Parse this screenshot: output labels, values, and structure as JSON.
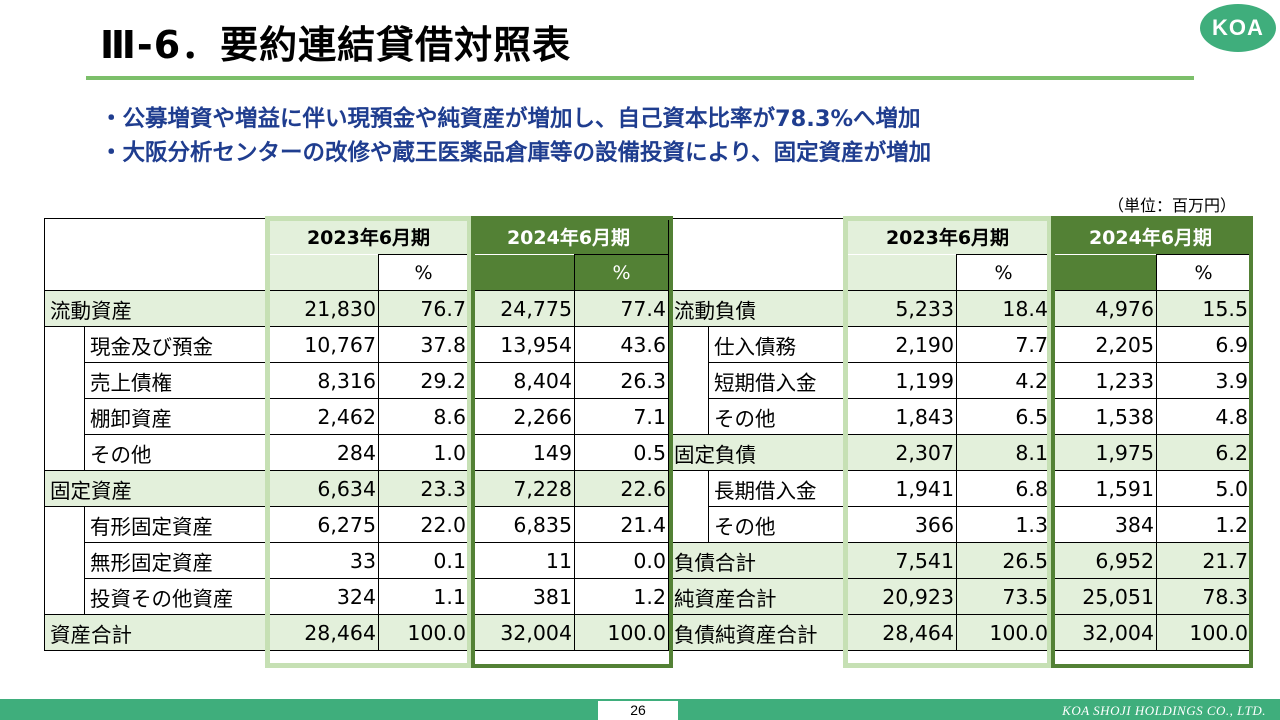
{
  "header": {
    "title": "Ⅲ-6．要約連結貸借対照表",
    "logo_text": "KOA"
  },
  "bullets": [
    "・公募増資や増益に伴い現預金や純資産が増加し、自己資本比率が78.3%へ増加",
    "・大阪分析センターの改修や蔵王医薬品倉庫等の設備投資により、固定資産が増加"
  ],
  "unit_note": "（単位：百万円）",
  "colors": {
    "accent_green": "#7cbf6a",
    "light_green": "#e3f0db",
    "dark_green": "#538135",
    "bullet_blue": "#1f3d8f",
    "footer_green": "#3fae7c"
  },
  "table": {
    "period_prev": "2023年6月期",
    "period_curr": "2024年6月期",
    "pct_label": "%",
    "assets": [
      {
        "label": "流動資産",
        "indent": false,
        "v23": "21,830",
        "p23": "76.7",
        "v24": "24,775",
        "p24": "77.4"
      },
      {
        "label": "現金及び預金",
        "indent": true,
        "v23": "10,767",
        "p23": "37.8",
        "v24": "13,954",
        "p24": "43.6"
      },
      {
        "label": "売上債権",
        "indent": true,
        "v23": "8,316",
        "p23": "29.2",
        "v24": "8,404",
        "p24": "26.3"
      },
      {
        "label": "棚卸資産",
        "indent": true,
        "v23": "2,462",
        "p23": "8.6",
        "v24": "2,266",
        "p24": "7.1"
      },
      {
        "label": "その他",
        "indent": true,
        "v23": "284",
        "p23": "1.0",
        "v24": "149",
        "p24": "0.5"
      },
      {
        "label": "固定資産",
        "indent": false,
        "v23": "6,634",
        "p23": "23.3",
        "v24": "7,228",
        "p24": "22.6"
      },
      {
        "label": "有形固定資産",
        "indent": true,
        "v23": "6,275",
        "p23": "22.0",
        "v24": "6,835",
        "p24": "21.4"
      },
      {
        "label": "無形固定資産",
        "indent": true,
        "v23": "33",
        "p23": "0.1",
        "v24": "11",
        "p24": "0.0"
      },
      {
        "label": "投資その他資産",
        "indent": true,
        "v23": "324",
        "p23": "1.1",
        "v24": "381",
        "p24": "1.2"
      },
      {
        "label": "資産合計",
        "indent": false,
        "v23": "28,464",
        "p23": "100.0",
        "v24": "32,004",
        "p24": "100.0"
      }
    ],
    "liabilities": [
      {
        "label": "流動負債",
        "indent": false,
        "v23": "5,233",
        "p23": "18.4",
        "v24": "4,976",
        "p24": "15.5"
      },
      {
        "label": "仕入債務",
        "indent": true,
        "v23": "2,190",
        "p23": "7.7",
        "v24": "2,205",
        "p24": "6.9"
      },
      {
        "label": "短期借入金",
        "indent": true,
        "v23": "1,199",
        "p23": "4.2",
        "v24": "1,233",
        "p24": "3.9"
      },
      {
        "label": "その他",
        "indent": true,
        "v23": "1,843",
        "p23": "6.5",
        "v24": "1,538",
        "p24": "4.8"
      },
      {
        "label": "固定負債",
        "indent": false,
        "v23": "2,307",
        "p23": "8.1",
        "v24": "1,975",
        "p24": "6.2"
      },
      {
        "label": "長期借入金",
        "indent": true,
        "v23": "1,941",
        "p23": "6.8",
        "v24": "1,591",
        "p24": "5.0"
      },
      {
        "label": "その他",
        "indent": true,
        "v23": "366",
        "p23": "1.3",
        "v24": "384",
        "p24": "1.2"
      },
      {
        "label": "負債合計",
        "indent": false,
        "v23": "7,541",
        "p23": "26.5",
        "v24": "6,952",
        "p24": "21.7"
      },
      {
        "label": "純資産合計",
        "indent": false,
        "v23": "20,923",
        "p23": "73.5",
        "v24": "25,051",
        "p24": "78.3"
      },
      {
        "label": "負債純資産合計",
        "indent": false,
        "v23": "28,464",
        "p23": "100.0",
        "v24": "32,004",
        "p24": "100.0"
      }
    ]
  },
  "footer": {
    "page_number": "26",
    "company": "KOA SHOJI HOLDINGS CO., LTD."
  }
}
